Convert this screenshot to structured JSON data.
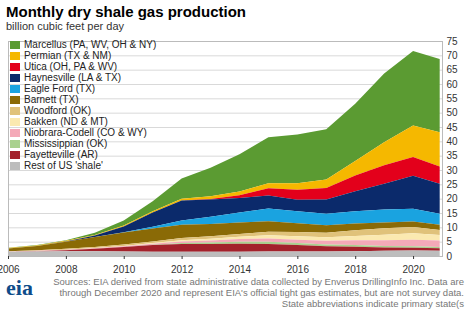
{
  "chart_data": {
    "type": "area",
    "stacked": true,
    "title": "Monthly dry shale gas production",
    "subtitle": "billion cubic feet per day",
    "caption": "Sources: EIA derived from state administrative data collected by Enverus DrillingInfo Inc. Data are through December 2020 and represent EIA's official tight gas estimates, but are not survey data. State abbreviations indicate primary state(s",
    "logo": "eia",
    "grid": true,
    "legend": "top-left",
    "x": [
      2006,
      2007,
      2008,
      2009,
      2010,
      2011,
      2012,
      2013,
      2014,
      2015,
      2016,
      2017,
      2018,
      2019,
      2020,
      2020.92
    ],
    "xlim": [
      2006,
      2021
    ],
    "xticks": [
      2006,
      2008,
      2010,
      2012,
      2014,
      2016,
      2018,
      2020
    ],
    "ylim": [
      0,
      75
    ],
    "yticks": [
      0,
      5,
      10,
      15,
      20,
      25,
      30,
      35,
      40,
      45,
      50,
      55,
      60,
      65,
      70,
      75
    ],
    "series": [
      {
        "name": "Marcellus (PA, WV, OH & NY)",
        "color": "#5b9b32",
        "values": [
          0.1,
          0.1,
          0.2,
          0.8,
          1.8,
          3.5,
          7,
          10,
          13,
          16,
          17,
          17.5,
          20,
          24,
          26,
          25.5
        ]
      },
      {
        "name": "Permian (TX & NM)",
        "color": "#f5b800",
        "values": [
          0.2,
          0.2,
          0.2,
          0.2,
          0.3,
          0.4,
          0.6,
          0.9,
          1.3,
          1.8,
          2.3,
          3.0,
          5.0,
          8.0,
          11.0,
          12.0
        ]
      },
      {
        "name": "Utica (OH, PA & WV)",
        "color": "#e3001b",
        "values": [
          0,
          0,
          0,
          0,
          0,
          0,
          0,
          0.2,
          1.0,
          2.5,
          3.5,
          4.0,
          5.5,
          6.5,
          6.5,
          6.0
        ]
      },
      {
        "name": "Haynesville (LA & TX)",
        "color": "#0b2a6b",
        "values": [
          0,
          0,
          0.1,
          0.5,
          2.0,
          5.0,
          7.0,
          6.0,
          5.0,
          4.5,
          4.0,
          5.0,
          7.0,
          9.0,
          11.5,
          10.5
        ]
      },
      {
        "name": "Eagle Ford (TX)",
        "color": "#1aa3e0",
        "values": [
          0,
          0,
          0,
          0,
          0.1,
          0.6,
          1.5,
          2.5,
          3.5,
          4.5,
          4.2,
          4.0,
          4.3,
          4.5,
          4.5,
          3.8
        ]
      },
      {
        "name": "Barnett (TX)",
        "color": "#8a6a06",
        "values": [
          0.9,
          1.5,
          2.5,
          3.5,
          4.2,
          4.5,
          4.6,
          4.3,
          4.0,
          3.6,
          3.0,
          2.6,
          2.3,
          2.0,
          1.9,
          1.8
        ]
      },
      {
        "name": "Woodford (OK)",
        "color": "#e0c27a",
        "values": [
          0.1,
          0.2,
          0.3,
          0.4,
          0.5,
          0.6,
          0.8,
          0.9,
          1.0,
          1.3,
          1.5,
          1.6,
          2.0,
          2.3,
          2.2,
          1.8
        ]
      },
      {
        "name": "Bakken (ND & MT)",
        "color": "#fbe9b0",
        "values": [
          0,
          0,
          0,
          0.05,
          0.1,
          0.2,
          0.4,
          0.6,
          0.8,
          1.1,
          1.2,
          1.2,
          1.5,
          1.9,
          2.2,
          1.9
        ]
      },
      {
        "name": "Niobrara-Codell (CO & WY)",
        "color": "#f4a9b8",
        "values": [
          0.1,
          0.1,
          0.2,
          0.2,
          0.3,
          0.4,
          0.6,
          0.7,
          0.9,
          1.1,
          1.2,
          1.3,
          1.7,
          2.0,
          2.3,
          2.3
        ]
      },
      {
        "name": "Mississippian (OK)",
        "color": "#a9d18e",
        "values": [
          0,
          0,
          0,
          0,
          0,
          0.1,
          0.3,
          0.5,
          0.7,
          0.8,
          0.7,
          0.6,
          0.6,
          0.5,
          0.5,
          0.4
        ]
      },
      {
        "name": "Fayetteville (AR)",
        "color": "#a3212b",
        "values": [
          0,
          0.1,
          0.3,
          0.8,
          1.5,
          2.3,
          2.7,
          2.7,
          2.8,
          2.6,
          2.2,
          1.8,
          1.5,
          1.2,
          1.0,
          0.9
        ]
      },
      {
        "name": "Rest of US 'shale'",
        "color": "#bdbdbd",
        "values": [
          1.5,
          1.6,
          1.7,
          1.7,
          1.6,
          1.5,
          1.5,
          1.5,
          1.5,
          1.6,
          1.6,
          1.6,
          1.7,
          1.8,
          1.9,
          1.8
        ]
      }
    ]
  }
}
